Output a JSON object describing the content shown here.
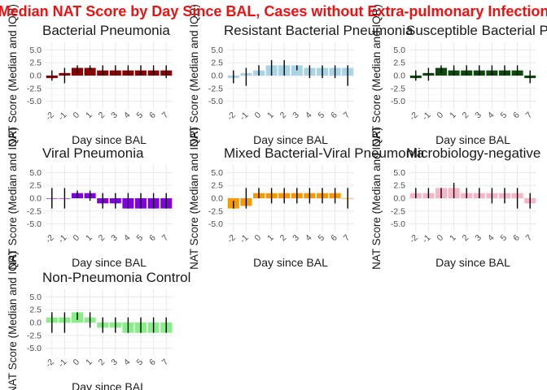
{
  "chart_data": {
    "type": "bar",
    "title": "Median NAT Score by Day Since BAL, Cases without Extra-pulmonary Infection",
    "title_color": "#ee1111",
    "xlabel": "Day since BAL",
    "ylabel": "NAT Score (Median and IQR)",
    "ylim": [
      -6.5,
      6.5
    ],
    "yticks": [
      -5.0,
      -2.5,
      0.0,
      2.5,
      5.0
    ],
    "ytick_labels": [
      "-5.0",
      "-2.5",
      "0.0",
      "2.5",
      "5.0"
    ],
    "categories": [
      "-2",
      "-1",
      "0",
      "1",
      "2",
      "3",
      "4",
      "5",
      "6",
      "7"
    ],
    "grid": true,
    "panels": [
      {
        "name": "Bacterial Pneumonia",
        "color": "#8b0000",
        "values": [
          -0.5,
          0.5,
          1.5,
          1.5,
          1,
          1,
          1,
          1,
          1,
          1
        ],
        "q1": [
          -1,
          -1.5,
          0.5,
          1,
          0,
          0,
          0,
          0,
          0,
          -0.5
        ],
        "q3": [
          1,
          1.5,
          2,
          2,
          2,
          2,
          2,
          2,
          2,
          2
        ]
      },
      {
        "name": "Resistant Bacterial Pneumonia",
        "color": "#a8d4e6",
        "values": [
          -0.5,
          0.5,
          1,
          2,
          2,
          2,
          1.5,
          1.5,
          1.5,
          1.5
        ],
        "q1": [
          -1.5,
          -2,
          0,
          0,
          0,
          1,
          -0.5,
          -0.5,
          -0.5,
          -2
        ],
        "q3": [
          1,
          1.5,
          2,
          3,
          3,
          2,
          2,
          2,
          2,
          2
        ]
      },
      {
        "name": "Susceptible Bacterial Pneumonia",
        "color": "#0c4a0c",
        "values": [
          -0.5,
          0.5,
          1.5,
          1,
          1,
          1,
          1,
          1,
          1,
          -0.5
        ],
        "q1": [
          -1,
          -1,
          0.5,
          0,
          0,
          0,
          0,
          0,
          0,
          -1.5
        ],
        "q3": [
          1,
          1.5,
          2,
          2,
          2,
          2,
          2,
          2,
          2,
          1
        ]
      },
      {
        "name": "Viral Pneumonia",
        "color": "#8000e0",
        "values": [
          0,
          0,
          1,
          1,
          -1,
          -1,
          -2,
          -2,
          -2,
          -2
        ],
        "q1": [
          -2,
          -2,
          0,
          -0.5,
          -2,
          -2,
          -2,
          -2,
          -2,
          -2
        ],
        "q3": [
          2,
          2,
          1.5,
          1.5,
          1,
          1,
          1,
          1,
          1,
          1
        ]
      },
      {
        "name": "Mixed Bacterial-Viral Pneumonia",
        "color": "#f59a00",
        "values": [
          -2,
          -1.5,
          1,
          1,
          1,
          1,
          1,
          1,
          1,
          0
        ],
        "q1": [
          -2,
          -2,
          0,
          -1,
          -1,
          -1,
          -1,
          -1,
          -1,
          -2
        ],
        "q3": [
          -0.5,
          2,
          2,
          2,
          2,
          2,
          2,
          2,
          2,
          2
        ]
      },
      {
        "name": "Microbiology-negative",
        "color": "#f7b6c8",
        "values": [
          1,
          1,
          2,
          2,
          1,
          1,
          1,
          1,
          1,
          -1
        ],
        "q1": [
          0,
          0,
          0,
          0,
          0,
          0,
          -1,
          -1,
          -2,
          -2
        ],
        "q3": [
          2,
          2,
          2,
          3,
          2,
          2,
          2,
          2,
          2,
          1
        ]
      },
      {
        "name": "Non-Pneumonia Control",
        "color": "#88ee88",
        "values": [
          1,
          1,
          2,
          1,
          -1,
          -1,
          -2,
          -2,
          -2,
          -2
        ],
        "q1": [
          -2,
          -2,
          0.5,
          -1,
          -2,
          -2,
          -2,
          -2,
          -2,
          -2
        ],
        "q3": [
          2,
          2,
          2,
          2,
          1,
          1,
          1,
          1,
          1,
          1
        ]
      }
    ]
  }
}
